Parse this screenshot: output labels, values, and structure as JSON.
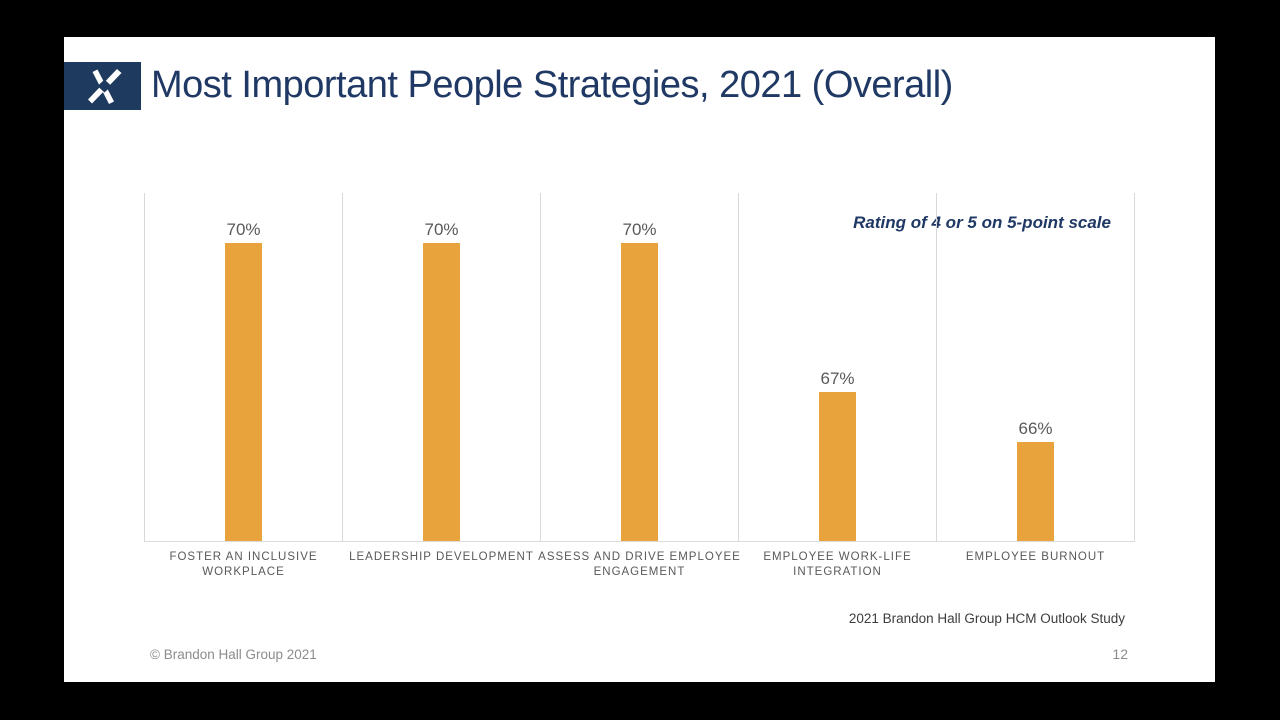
{
  "colors": {
    "frame_bg": "#000000",
    "slide_bg": "#FFFFFF",
    "navy": "#1F3864",
    "logo_bg": "#1E3A5F",
    "logo_icon": "#FFFFFF",
    "bar": "#E8A33C",
    "gridline": "#D9D9D9",
    "label_gray": "#595959",
    "muted_gray": "#8C8C8C",
    "source_gray": "#3D3D3D"
  },
  "header": {
    "title": "Most Important People Strategies, 2021 (Overall)",
    "logo_icon": "brandon-hall-x-icon"
  },
  "chart_data": {
    "type": "bar",
    "title": "Most Important People Strategies, 2021 (Overall)",
    "categories": [
      "FOSTER AN INCLUSIVE WORKPLACE",
      "LEADERSHIP DEVELOPMENT",
      "ASSESS AND DRIVE EMPLOYEE ENGAGEMENT",
      "EMPLOYEE WORK-LIFE INTEGRATION",
      "EMPLOYEE BURNOUT"
    ],
    "values": [
      70,
      70,
      70,
      67,
      66
    ],
    "value_labels": [
      "70%",
      "70%",
      "70%",
      "67%",
      "66%"
    ],
    "unit": "percent",
    "annotation": "Rating of 4 or 5 on 5-point scale",
    "axis_min": 64,
    "axis_max": 71,
    "grid": "vertical-category-separators",
    "legend": "none",
    "bar_color": "#E8A33C"
  },
  "footer": {
    "source": "2021 Brandon Hall Group HCM Outlook Study",
    "copyright": "© Brandon Hall Group 2021",
    "page_number": "12"
  }
}
